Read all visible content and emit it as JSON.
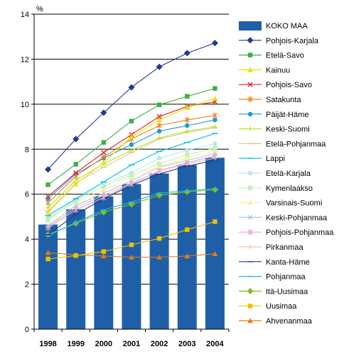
{
  "chart_data": {
    "type": "bar",
    "unit_label": "%",
    "categories": [
      "1998",
      "1999",
      "2000",
      "2001",
      "2002",
      "2003",
      "2004"
    ],
    "ylim": [
      0,
      14
    ],
    "yticks": [
      0,
      2,
      4,
      6,
      8,
      10,
      12,
      14
    ],
    "grid": true,
    "legend_position": "right",
    "bar_series": {
      "name": "KOKO MAA",
      "color": "#1f5fa8",
      "values": [
        4.65,
        5.33,
        5.9,
        6.45,
        6.92,
        7.3,
        7.62
      ]
    },
    "line_series": [
      {
        "name": "Pohjois-Karjala",
        "color": "#1f3a93",
        "marker": "diamond",
        "values": [
          7.1,
          8.45,
          9.62,
          10.75,
          11.66,
          12.27,
          12.72
        ]
      },
      {
        "name": "Etelä-Savo",
        "color": "#3cb043",
        "marker": "square",
        "values": [
          6.42,
          7.33,
          8.3,
          9.25,
          9.97,
          10.35,
          10.7
        ]
      },
      {
        "name": "Kainuu",
        "color": "#f0e000",
        "marker": "triangle",
        "values": [
          5.2,
          6.45,
          7.4,
          8.55,
          9.3,
          9.85,
          10.25
        ]
      },
      {
        "name": "Pohjois-Savo",
        "color": "#e02020",
        "marker": "x",
        "values": [
          5.9,
          6.95,
          7.85,
          8.65,
          9.45,
          9.9,
          10.1
        ]
      },
      {
        "name": "Satakunta",
        "color": "#f08020",
        "marker": "star",
        "values": [
          5.62,
          6.8,
          7.65,
          8.45,
          9.05,
          9.3,
          9.5
        ]
      },
      {
        "name": "Päijät-Häme",
        "color": "#1a9ad6",
        "marker": "circle",
        "values": [
          5.8,
          6.9,
          7.6,
          8.2,
          8.8,
          9.05,
          9.3
        ]
      },
      {
        "name": "Keski-Suomi",
        "color": "#b5e61d",
        "marker": "plus",
        "values": [
          5.4,
          6.62,
          7.35,
          7.95,
          8.5,
          8.8,
          9.0
        ]
      },
      {
        "name": "Etelä-Pohjanmaa",
        "color": "#d8c8a0",
        "marker": "dash",
        "values": [
          5.25,
          6.5,
          7.2,
          7.85,
          8.45,
          8.75,
          8.95
        ]
      },
      {
        "name": "Lappi",
        "color": "#00c0e0",
        "marker": "dash",
        "values": [
          5.05,
          5.8,
          6.55,
          7.3,
          7.9,
          8.3,
          8.7
        ]
      },
      {
        "name": "Etelä-Karjala",
        "color": "#b8e8f0",
        "marker": "circle",
        "values": [
          4.95,
          5.75,
          6.45,
          6.95,
          7.6,
          7.95,
          8.25
        ]
      },
      {
        "name": "Kymenlaakso",
        "color": "#c8f0b0",
        "marker": "square",
        "values": [
          4.85,
          5.7,
          6.35,
          6.85,
          7.35,
          7.75,
          8.05
        ]
      },
      {
        "name": "Varsinais-Suomi",
        "color": "#f8f0a0",
        "marker": "triangle",
        "values": [
          4.9,
          5.65,
          6.2,
          6.75,
          7.25,
          7.6,
          7.95
        ]
      },
      {
        "name": "Keski-Pohjanmaa",
        "color": "#a8c8e8",
        "marker": "x",
        "values": [
          4.6,
          5.5,
          6.05,
          6.6,
          7.2,
          7.5,
          7.8
        ]
      },
      {
        "name": "Pohjois-Pohjanmaa",
        "color": "#f0a0d0",
        "marker": "star",
        "values": [
          4.5,
          5.3,
          5.85,
          6.45,
          7.05,
          7.4,
          7.7
        ]
      },
      {
        "name": "Pirkanmaa",
        "color": "#e8c8a8",
        "marker": "plus",
        "values": [
          4.55,
          5.4,
          5.95,
          6.5,
          7.0,
          7.35,
          7.6
        ]
      },
      {
        "name": "Kanta-Häme",
        "color": "#1f3a93",
        "marker": "dash",
        "values": [
          4.2,
          5.1,
          5.8,
          6.4,
          6.9,
          7.25,
          7.5
        ]
      },
      {
        "name": "Pohjanmaa",
        "color": "#20b8e0",
        "marker": "dash",
        "values": [
          4.15,
          4.75,
          5.3,
          5.65,
          6.05,
          6.15,
          6.25
        ]
      },
      {
        "name": "Itä-Uusimaa",
        "color": "#80c020",
        "marker": "diamond",
        "values": [
          4.2,
          4.7,
          5.2,
          5.55,
          5.95,
          6.1,
          6.2
        ]
      },
      {
        "name": "Uusimaa",
        "color": "#f0c000",
        "marker": "square",
        "values": [
          3.12,
          3.27,
          3.45,
          3.75,
          4.03,
          4.42,
          4.78
        ]
      },
      {
        "name": "Ahvenanmaa",
        "color": "#e08010",
        "marker": "triangle",
        "values": [
          3.4,
          3.3,
          3.25,
          3.2,
          3.2,
          3.25,
          3.35
        ]
      }
    ]
  }
}
